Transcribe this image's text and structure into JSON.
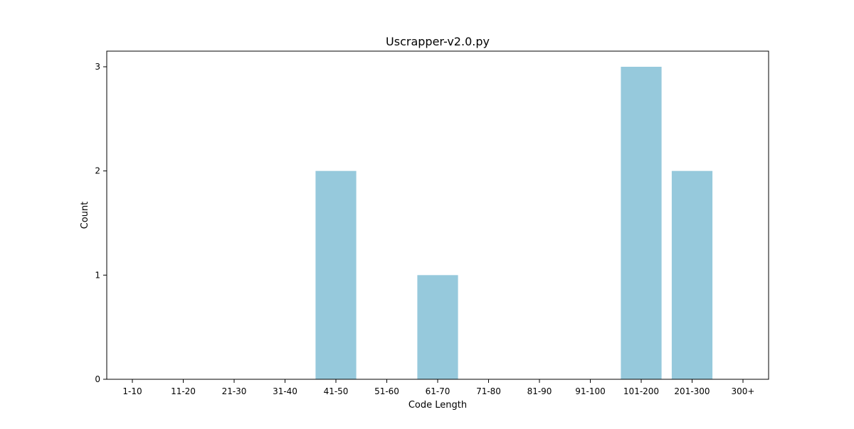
{
  "chart_data": {
    "type": "bar",
    "title": "Uscrapper-v2.0.py",
    "xlabel": "Code Length",
    "ylabel": "Count",
    "categories": [
      "1-10",
      "11-20",
      "21-30",
      "31-40",
      "41-50",
      "51-60",
      "61-70",
      "71-80",
      "81-90",
      "91-100",
      "101-200",
      "201-300",
      "300+"
    ],
    "values": [
      0,
      0,
      0,
      0,
      2,
      0,
      1,
      0,
      0,
      0,
      3,
      2,
      0
    ],
    "ylim": [
      0,
      3.15
    ],
    "yticks": [
      0,
      1,
      2,
      3
    ],
    "bar_color": "#96c9dc",
    "grid": false,
    "legend": "none"
  }
}
